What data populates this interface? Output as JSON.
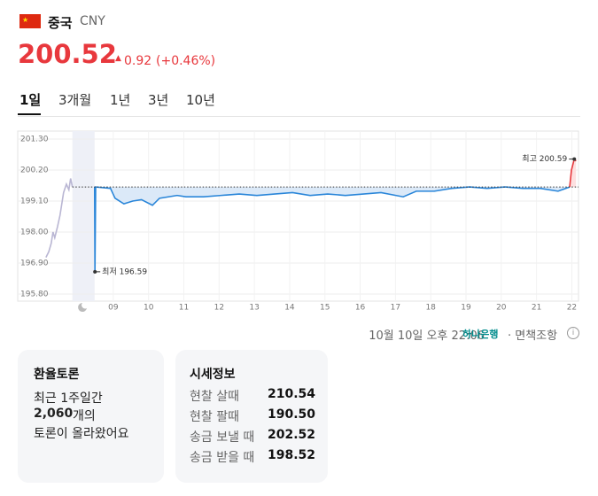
{
  "header": {
    "name": "중국",
    "code": "CNY",
    "price": "200.52",
    "change": "0.92",
    "change_pct": "(+0.46%)"
  },
  "tabs": [
    "1일",
    "3개월",
    "1년",
    "3년",
    "10년"
  ],
  "chart_data": {
    "type": "line",
    "xlim": [
      6.29,
      22.19
    ],
    "ylim": [
      195.8,
      201.3
    ],
    "xticks": [
      {
        "value": 9,
        "label": "09"
      },
      10,
      11,
      12,
      13,
      14,
      15,
      16,
      17,
      18,
      19,
      20,
      21,
      22
    ],
    "yticks": [
      {
        "value": 195.8,
        "label": "195.80"
      },
      {
        "value": 196.9,
        "label": "196.90"
      },
      {
        "value": 198,
        "label": "198.00"
      },
      {
        "value": 199.1,
        "label": "199.10"
      },
      {
        "value": 200.2,
        "label": "200.20"
      },
      {
        "value": 201.3,
        "label": "201.30"
      }
    ],
    "grid": true,
    "baseline": 199.6,
    "closed_range": [
      7.84,
      8.47
    ],
    "series": [
      {
        "color": "#b9b6d3",
        "x": [
          7.09,
          7.17,
          7.24,
          7.29,
          7.34,
          7.42,
          7.49,
          7.54,
          7.59,
          7.67,
          7.74,
          7.79,
          7.84
        ],
        "values": [
          197.1,
          197.3,
          197.6,
          198.0,
          197.8,
          198.2,
          198.6,
          199.0,
          199.4,
          199.7,
          199.5,
          199.9,
          199.6
        ]
      },
      {
        "color": "#2a86d9",
        "fill": "#dbe9f8",
        "x": [
          8.47,
          8.48,
          8.5,
          8.92,
          9.05,
          9.3,
          9.55,
          9.8,
          10.11,
          10.31,
          10.81,
          11.06,
          11.56,
          12.06,
          12.57,
          13.07,
          13.57,
          14.08,
          14.58,
          15.08,
          15.58,
          16.09,
          16.59,
          17.22,
          17.59,
          18.1,
          18.6,
          19.1,
          19.6,
          20.11,
          20.61,
          21.11,
          21.61,
          21.94
        ],
        "values": [
          199.6,
          196.59,
          199.6,
          199.55,
          199.2,
          199.0,
          199.1,
          199.15,
          198.95,
          199.2,
          199.3,
          199.25,
          199.25,
          199.3,
          199.35,
          199.3,
          199.35,
          199.4,
          199.3,
          199.35,
          199.3,
          199.35,
          199.4,
          199.25,
          199.45,
          199.45,
          199.55,
          199.6,
          199.55,
          199.6,
          199.55,
          199.55,
          199.45,
          199.6
        ]
      },
      {
        "color": "#e8383d",
        "fill": "#fde0e0",
        "x": [
          21.94,
          21.99,
          22.07,
          22.12
        ],
        "values": [
          199.6,
          200.2,
          200.59,
          200.52
        ]
      }
    ],
    "annotations": [
      {
        "text": "최저 196.59",
        "x": 8.48,
        "y": 196.59
      },
      {
        "text": "최고 200.59",
        "x": 22.07,
        "y": 200.59
      }
    ]
  },
  "footer": {
    "timestamp": "10월 10일 오후 22:06",
    "bank": "하나은행",
    "disclaimer": "· 면책조항"
  },
  "cards": [
    {
      "title": "환율토론",
      "lines": [
        "최근 1주일간",
        "2,060",
        "개의",
        "토론이 올라왔어요"
      ]
    },
    {
      "title": "시세정보",
      "rows": [
        [
          "현찰 살때",
          "210.54"
        ],
        [
          "현찰 팔때",
          "190.50"
        ],
        [
          "송금 보낼 때",
          "202.52"
        ],
        [
          "송금 받을 때",
          "198.52"
        ]
      ]
    }
  ]
}
